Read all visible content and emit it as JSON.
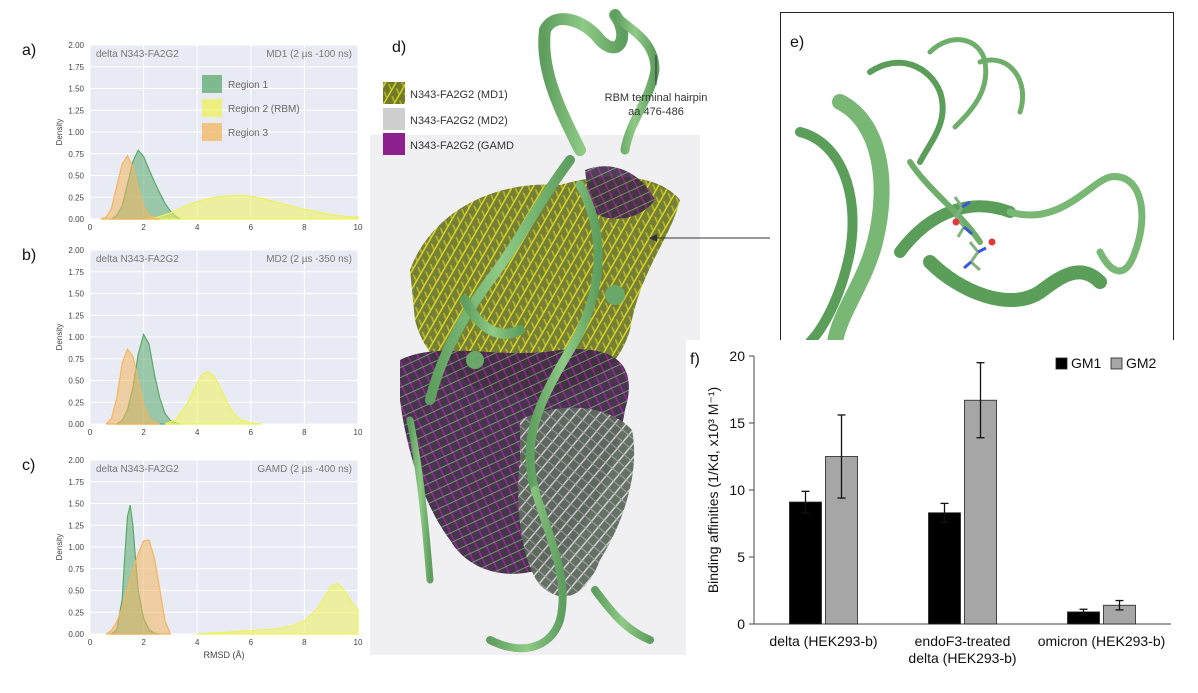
{
  "panels": {
    "a": "a)",
    "b": "b)",
    "c": "c)",
    "d": "d)",
    "e": "e)",
    "f": "f)"
  },
  "density_plots": {
    "ylabel": "Density",
    "xlabel": "RMSD (Å)",
    "yticks": [
      "0.00",
      "0.25",
      "0.50",
      "0.75",
      "1.00",
      "1.25",
      "1.50",
      "1.75",
      "2.00"
    ],
    "xticks": [
      "0",
      "2",
      "4",
      "6",
      "8",
      "10"
    ],
    "legend": [
      "Region 1",
      "Region 2 (RBM)",
      "Region 3"
    ],
    "colors": {
      "region1": "#5aa96b",
      "region2": "#eef25a",
      "region3": "#f4b55e",
      "panel_bg": "#e9ebf4"
    },
    "plots": [
      {
        "id": "a",
        "system": "delta N343-FA2G2",
        "run": "MD1 (2 µs -100 ns)"
      },
      {
        "id": "b",
        "system": "delta N343-FA2G2",
        "run": "MD2 (2 µs -350 ns)"
      },
      {
        "id": "c",
        "system": "delta N343-FA2G2",
        "run": "GAMD (2 µs -400 ns)"
      }
    ]
  },
  "structure_d": {
    "legend": [
      {
        "label": "N343-FA2G2 (MD1)",
        "color": "#c9c21f"
      },
      {
        "label": "N343-FA2G2 (MD2)",
        "color": "#c8c8c8"
      },
      {
        "label": "N343-FA2G2 (GAMD",
        "color": "#8e1f8e"
      }
    ],
    "annotation_line1": "RBM terminal hairpin",
    "annotation_line2": "aa 476-486"
  },
  "chart_data": [
    {
      "type": "area",
      "panel": "a",
      "title": "MD1 (2 µs -100 ns)",
      "subtitle": "delta N343-FA2G2",
      "xlabel": "",
      "ylabel": "Density",
      "xlim": [
        0,
        10
      ],
      "ylim": [
        0,
        2
      ],
      "series": [
        {
          "name": "Region 1",
          "x": [
            0.8,
            1.0,
            1.2,
            1.4,
            1.6,
            1.8,
            2.0,
            2.2,
            2.4,
            2.6,
            2.8,
            3.0,
            3.2,
            3.4
          ],
          "y": [
            0.0,
            0.04,
            0.15,
            0.4,
            0.66,
            0.79,
            0.72,
            0.57,
            0.43,
            0.3,
            0.18,
            0.09,
            0.03,
            0.0
          ]
        },
        {
          "name": "Region 2 (RBM)",
          "x": [
            2.0,
            2.5,
            3.0,
            3.5,
            4.0,
            4.5,
            5.0,
            5.5,
            6.0,
            6.5,
            7.0,
            7.5,
            8.0,
            8.5,
            9.0,
            9.5,
            10.0
          ],
          "y": [
            0.0,
            0.02,
            0.07,
            0.14,
            0.2,
            0.24,
            0.26,
            0.27,
            0.26,
            0.23,
            0.19,
            0.15,
            0.11,
            0.08,
            0.05,
            0.03,
            0.02
          ]
        },
        {
          "name": "Region 3",
          "x": [
            0.4,
            0.6,
            0.8,
            1.0,
            1.2,
            1.4,
            1.6,
            1.8,
            2.0,
            2.2,
            2.4,
            2.6
          ],
          "y": [
            0.0,
            0.02,
            0.12,
            0.38,
            0.63,
            0.73,
            0.6,
            0.35,
            0.14,
            0.05,
            0.01,
            0.0
          ]
        }
      ]
    },
    {
      "type": "area",
      "panel": "b",
      "title": "MD2 (2 µs -350 ns)",
      "subtitle": "delta N343-FA2G2",
      "xlabel": "",
      "ylabel": "Density",
      "xlim": [
        0,
        10
      ],
      "ylim": [
        0,
        2
      ],
      "series": [
        {
          "name": "Region 1",
          "x": [
            1.0,
            1.2,
            1.4,
            1.6,
            1.8,
            2.0,
            2.2,
            2.4,
            2.6,
            2.8,
            3.0,
            3.2,
            3.4
          ],
          "y": [
            0.0,
            0.04,
            0.16,
            0.42,
            0.8,
            1.03,
            0.92,
            0.58,
            0.3,
            0.12,
            0.04,
            0.01,
            0.0
          ]
        },
        {
          "name": "Region 2 (RBM)",
          "x": [
            2.8,
            3.2,
            3.6,
            4.0,
            4.2,
            4.4,
            4.6,
            4.8,
            5.0,
            5.2,
            5.4,
            5.6,
            6.0,
            6.4
          ],
          "y": [
            0.0,
            0.05,
            0.22,
            0.47,
            0.57,
            0.6,
            0.56,
            0.46,
            0.33,
            0.2,
            0.11,
            0.05,
            0.01,
            0.0
          ]
        },
        {
          "name": "Region 3",
          "x": [
            0.6,
            0.8,
            1.0,
            1.2,
            1.4,
            1.6,
            1.8,
            2.0,
            2.2,
            2.4,
            2.6
          ],
          "y": [
            0.0,
            0.06,
            0.3,
            0.7,
            0.86,
            0.78,
            0.5,
            0.22,
            0.07,
            0.02,
            0.0
          ]
        }
      ]
    },
    {
      "type": "area",
      "panel": "c",
      "title": "GAMD (2 µs -400 ns)",
      "subtitle": "delta N343-FA2G2",
      "xlabel": "RMSD (Å)",
      "ylabel": "Density",
      "xlim": [
        0,
        10
      ],
      "ylim": [
        0,
        2
      ],
      "series": [
        {
          "name": "Region 1",
          "x": [
            0.8,
            1.0,
            1.2,
            1.3,
            1.4,
            1.5,
            1.6,
            1.7,
            1.8,
            2.0,
            2.2,
            2.4,
            2.6
          ],
          "y": [
            0.0,
            0.05,
            0.4,
            0.9,
            1.35,
            1.48,
            1.25,
            0.85,
            0.5,
            0.18,
            0.05,
            0.01,
            0.0
          ]
        },
        {
          "name": "Region 2 (RBM)",
          "x": [
            4.0,
            5.0,
            6.0,
            7.0,
            7.5,
            8.0,
            8.5,
            8.8,
            9.0,
            9.2,
            9.4,
            9.6,
            9.8,
            10.0
          ],
          "y": [
            0.0,
            0.02,
            0.04,
            0.06,
            0.09,
            0.15,
            0.3,
            0.45,
            0.55,
            0.58,
            0.54,
            0.45,
            0.35,
            0.28
          ]
        },
        {
          "name": "Region 3",
          "x": [
            0.6,
            0.8,
            1.0,
            1.2,
            1.4,
            1.6,
            1.8,
            2.0,
            2.2,
            2.4,
            2.6,
            2.8,
            3.0
          ],
          "y": [
            0.0,
            0.04,
            0.14,
            0.3,
            0.52,
            0.74,
            0.92,
            1.07,
            1.08,
            0.88,
            0.52,
            0.15,
            0.0
          ]
        }
      ]
    },
    {
      "type": "bar",
      "panel": "f",
      "title": "",
      "xlabel": "",
      "ylabel": "Binding affinities (1/Kd, x10³ M⁻¹)",
      "ylim": [
        0,
        20
      ],
      "yticks": [
        0,
        5,
        10,
        15,
        20
      ],
      "categories": [
        "delta (HEK293-b)",
        "endoF3-treated delta (HEK293-b)",
        "omicron (HEK293-b)"
      ],
      "category_lines": [
        [
          "delta (HEK293-b)"
        ],
        [
          "endoF3-treated",
          "delta (HEK293-b)"
        ],
        [
          "omicron (HEK293-b)"
        ]
      ],
      "legend_placement": "top-right",
      "series": [
        {
          "name": "GM1",
          "color": "#000000",
          "values": [
            9.1,
            8.3,
            0.9
          ],
          "errors": [
            0.8,
            0.7,
            0.2
          ]
        },
        {
          "name": "GM2",
          "color": "#a6a6a6",
          "values": [
            12.5,
            16.7,
            1.4
          ],
          "errors": [
            3.1,
            2.8,
            0.35
          ]
        }
      ]
    }
  ]
}
